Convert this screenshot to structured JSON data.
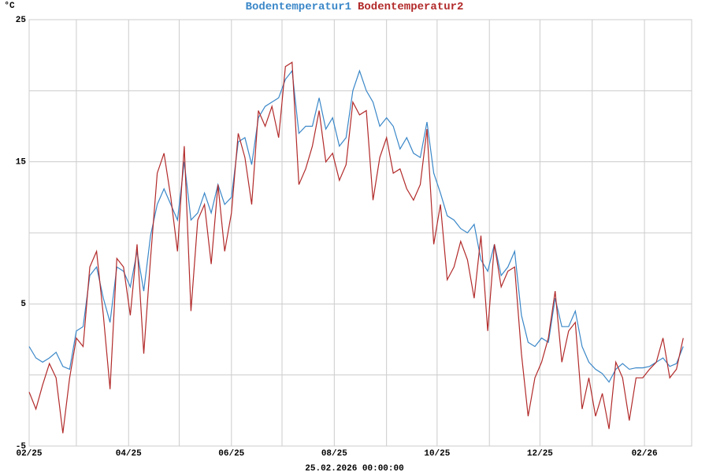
{
  "chart_data": {
    "type": "line",
    "y_unit": "°C",
    "footer": "25.02.2026 00:00:00",
    "x": [
      0,
      4,
      8,
      12,
      16,
      20,
      24,
      28,
      32,
      36,
      40,
      44,
      48,
      52,
      56,
      60,
      64,
      68,
      72,
      76,
      80,
      84,
      88,
      92,
      96,
      100,
      104,
      108,
      112,
      116,
      120,
      124,
      128,
      132,
      136,
      140,
      144,
      148,
      152,
      156,
      160,
      164,
      168,
      172,
      176,
      180,
      184,
      188,
      192,
      196,
      200,
      204,
      208,
      212,
      216,
      220,
      224,
      228,
      232,
      236,
      240,
      244,
      248,
      252,
      256,
      260,
      264,
      268,
      272,
      276,
      280,
      284,
      288,
      292,
      296,
      300,
      304,
      308,
      312,
      316,
      320,
      324,
      328,
      332,
      336,
      340,
      344,
      348,
      352,
      356,
      360,
      364,
      368,
      372,
      376,
      380,
      384,
      388
    ],
    "series": [
      {
        "name": "Bodentemperatur1",
        "color": "#3a87c8",
        "values": [
          2.0,
          1.2,
          0.9,
          1.2,
          1.6,
          0.6,
          0.4,
          3.1,
          3.4,
          7.0,
          7.6,
          5.4,
          3.7,
          7.6,
          7.3,
          6.2,
          8.7,
          5.9,
          9.8,
          12.0,
          13.1,
          12.0,
          10.9,
          15.0,
          10.9,
          11.4,
          12.8,
          11.4,
          13.4,
          12.0,
          12.5,
          16.4,
          16.7,
          14.8,
          18.1,
          18.9,
          19.2,
          19.5,
          20.8,
          21.4,
          17.0,
          17.5,
          17.5,
          19.5,
          17.3,
          18.1,
          16.1,
          16.7,
          20.0,
          21.4,
          20.0,
          19.2,
          17.5,
          18.1,
          17.5,
          15.9,
          16.7,
          15.6,
          15.3,
          17.8,
          14.2,
          12.8,
          11.2,
          10.9,
          10.3,
          10.0,
          10.6,
          8.1,
          7.3,
          9.2,
          7.0,
          7.6,
          8.7,
          4.2,
          2.3,
          2.0,
          2.6,
          2.3,
          5.4,
          3.4,
          3.4,
          4.5,
          2.0,
          0.9,
          0.4,
          0.1,
          -0.5,
          0.4,
          0.8,
          0.4,
          0.5,
          0.5,
          0.6,
          0.9,
          1.2,
          0.6,
          0.8,
          2.0
        ]
      },
      {
        "name": "Bodentemperatur2",
        "color": "#b22a2a",
        "values": [
          -1.2,
          -2.4,
          -0.7,
          0.8,
          -0.2,
          -4.1,
          -0.2,
          2.6,
          2.0,
          7.6,
          8.7,
          4.2,
          -1.0,
          8.2,
          7.6,
          4.2,
          9.2,
          1.5,
          8.2,
          14.2,
          15.6,
          12.5,
          8.7,
          16.1,
          4.5,
          10.9,
          12.0,
          7.8,
          13.4,
          8.7,
          11.4,
          17.0,
          15.3,
          12.0,
          18.6,
          17.5,
          18.9,
          16.7,
          21.7,
          22.0,
          13.4,
          14.5,
          16.1,
          18.6,
          15.0,
          15.6,
          13.7,
          14.8,
          19.2,
          18.3,
          18.6,
          12.3,
          15.3,
          16.7,
          14.2,
          14.5,
          13.1,
          12.3,
          13.4,
          17.3,
          9.2,
          12.0,
          6.7,
          7.6,
          9.4,
          8.1,
          5.4,
          9.8,
          3.1,
          9.2,
          6.2,
          7.3,
          7.6,
          1.5,
          -2.9,
          -0.2,
          0.9,
          2.6,
          5.9,
          0.9,
          3.1,
          3.7,
          -2.4,
          -0.2,
          -2.9,
          -1.3,
          -3.8,
          0.9,
          -0.2,
          -3.2,
          -0.2,
          -0.2,
          0.4,
          0.9,
          2.6,
          -0.2,
          0.4,
          2.6
        ]
      }
    ],
    "xlim": [
      0,
      393
    ],
    "xticks": [
      {
        "value": 0,
        "label": "02/25"
      },
      {
        "value": 59,
        "label": "04/25"
      },
      {
        "value": 120,
        "label": "06/25"
      },
      {
        "value": 181,
        "label": "08/25"
      },
      {
        "value": 242,
        "label": "10/25"
      },
      {
        "value": 303,
        "label": "12/25"
      },
      {
        "value": 365,
        "label": "02/26"
      }
    ],
    "xgrid": [
      0,
      28,
      59,
      89,
      120,
      150,
      181,
      212,
      242,
      273,
      303,
      334,
      365
    ],
    "ylim": [
      -5,
      25
    ],
    "yticks": [
      -5,
      5,
      15,
      25
    ],
    "ygrid": [
      -5,
      0,
      5,
      10,
      15,
      20,
      25
    ],
    "grid": true,
    "grid_color": "#cccccc"
  }
}
